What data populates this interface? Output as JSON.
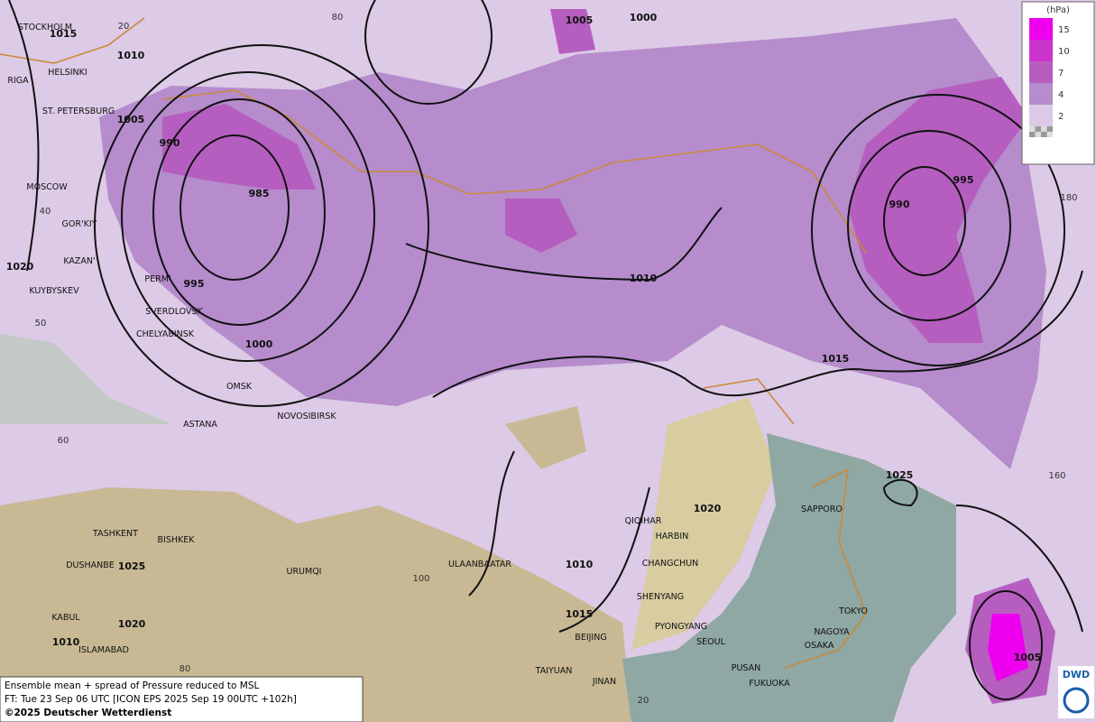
{
  "map": {
    "cities": [
      "STOCKHOLM",
      "HELSINKI",
      "RIGA",
      "ST. PETERSBURG",
      "MOSCOW",
      "GOR'KIY",
      "KAZAN'",
      "PERM'",
      "KUYBYSKEV",
      "SVERDLOVSK",
      "CHELYABINSK",
      "OMSK",
      "ASTANA",
      "NOVOSIBIRSK",
      "TASHKENT",
      "BISHKEK",
      "DUSHANBE",
      "URUMQI",
      "KABUL",
      "ISLAMABAD",
      "ULAANBAATAR",
      "QIQIHAR",
      "HARBIN",
      "CHANGCHUN",
      "SHENYANG",
      "PYONGYANG",
      "SEOUL",
      "BEIJING",
      "TAIYUAN",
      "JINAN",
      "PUSAN",
      "FUKUOKA",
      "OSAKA",
      "NAGOYA",
      "TOKYO",
      "SAPPORO"
    ],
    "isobar_labels": [
      "1015",
      "1010",
      "1005",
      "990",
      "985",
      "995",
      "1000",
      "1020",
      "1005",
      "1000",
      "1010",
      "1015",
      "990",
      "995",
      "1025",
      "1020",
      "1010",
      "1015",
      "1025",
      "1020",
      "1010",
      "1005"
    ],
    "grid_labels": [
      "20",
      "80",
      "40",
      "50",
      "60",
      "100",
      "80",
      "180",
      "160",
      "20"
    ]
  },
  "legend": {
    "unit": "(hPa)",
    "levels": [
      {
        "label": "15",
        "color": "#ee00ee"
      },
      {
        "label": "10",
        "color": "#cc33cc"
      },
      {
        "label": "7",
        "color": "#b65ec0"
      },
      {
        "label": "4",
        "color": "#b68ccc"
      },
      {
        "label": "2",
        "color": "#dccae6"
      }
    ]
  },
  "caption": {
    "line1": "Ensemble mean + spread of Pressure reduced to MSL",
    "line2": "FT: Tue 23 Sep 06 UTC [ICON EPS 2025 Sep 19 00UTC +102h]",
    "line3": "©2025 Deutscher Wetterdienst"
  },
  "logo": "DWD"
}
